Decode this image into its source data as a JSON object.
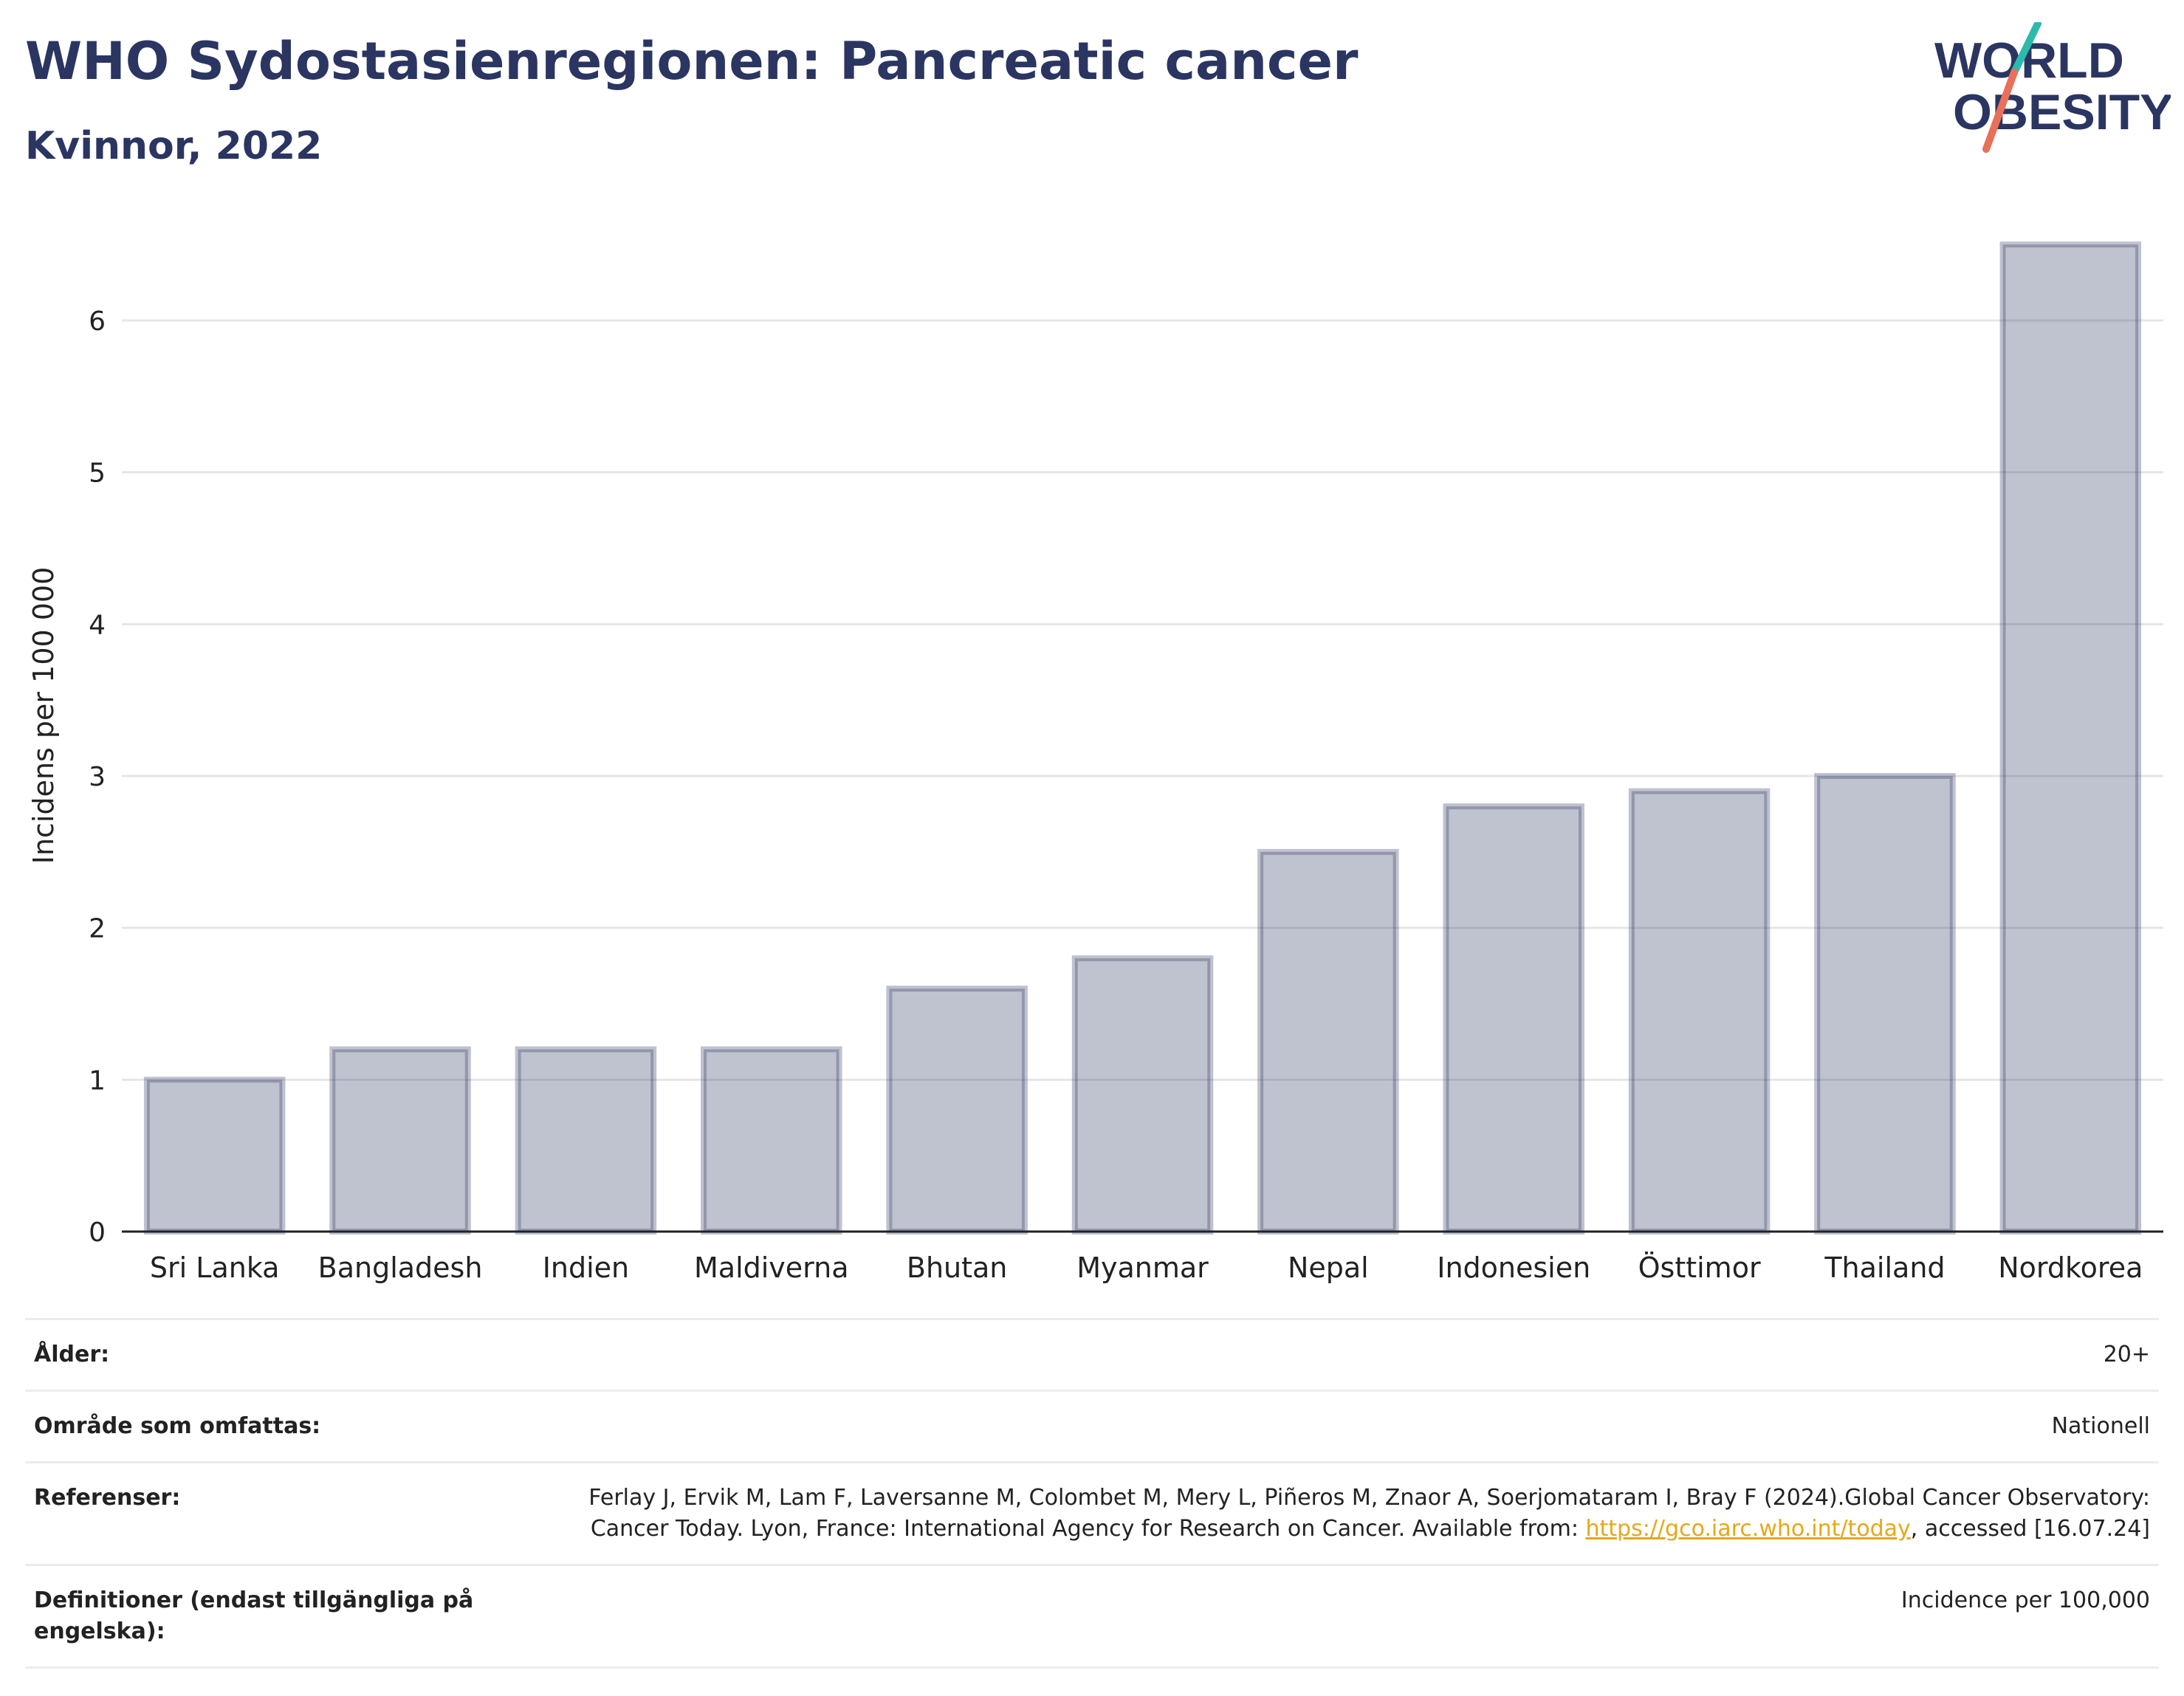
{
  "header": {
    "title": "WHO Sydostasienregionen: Pancreatic cancer",
    "subtitle": "Kvinnor, 2022",
    "logo_line1": "WORLD",
    "logo_line2": "OBESITY"
  },
  "chart_data": {
    "type": "bar",
    "title": "WHO Sydostasienregionen: Pancreatic cancer",
    "subtitle": "Kvinnor, 2022",
    "ylabel": "Incidens per 100 000",
    "xlabel": "",
    "categories": [
      "Sri Lanka",
      "Bangladesh",
      "Indien",
      "Maldiverna",
      "Bhutan",
      "Myanmar",
      "Nepal",
      "Indonesien",
      "Östtimor",
      "Thailand",
      "Nordkorea"
    ],
    "values": [
      1.0,
      1.2,
      1.2,
      1.2,
      1.6,
      1.8,
      2.5,
      2.8,
      2.9,
      3.0,
      6.5
    ],
    "ylim": [
      0,
      6.7
    ],
    "yticks": [
      0,
      1,
      2,
      3,
      4,
      5,
      6
    ],
    "grid": true,
    "bar_color": "#2b3561"
  },
  "info": {
    "rows": [
      {
        "label": "Ålder:",
        "value": "20+"
      },
      {
        "label": "Område som omfattas:",
        "value": "Nationell"
      },
      {
        "label": "Referenser:",
        "value_pre": "Ferlay J, Ervik M, Lam F, Laversanne M, Colombet M, Mery L, Piñeros M, Znaor A, Soerjomataram I, Bray F (2024).Global Cancer Observatory: Cancer Today. Lyon, France: International Agency for Research on Cancer. Available from: ",
        "link": "https://gco.iarc.who.int/today",
        "value_post": ", accessed [16.07.24]"
      },
      {
        "label": "Definitioner (endast tillgängliga på engelska):",
        "value": "Incidence per 100,000"
      }
    ]
  }
}
